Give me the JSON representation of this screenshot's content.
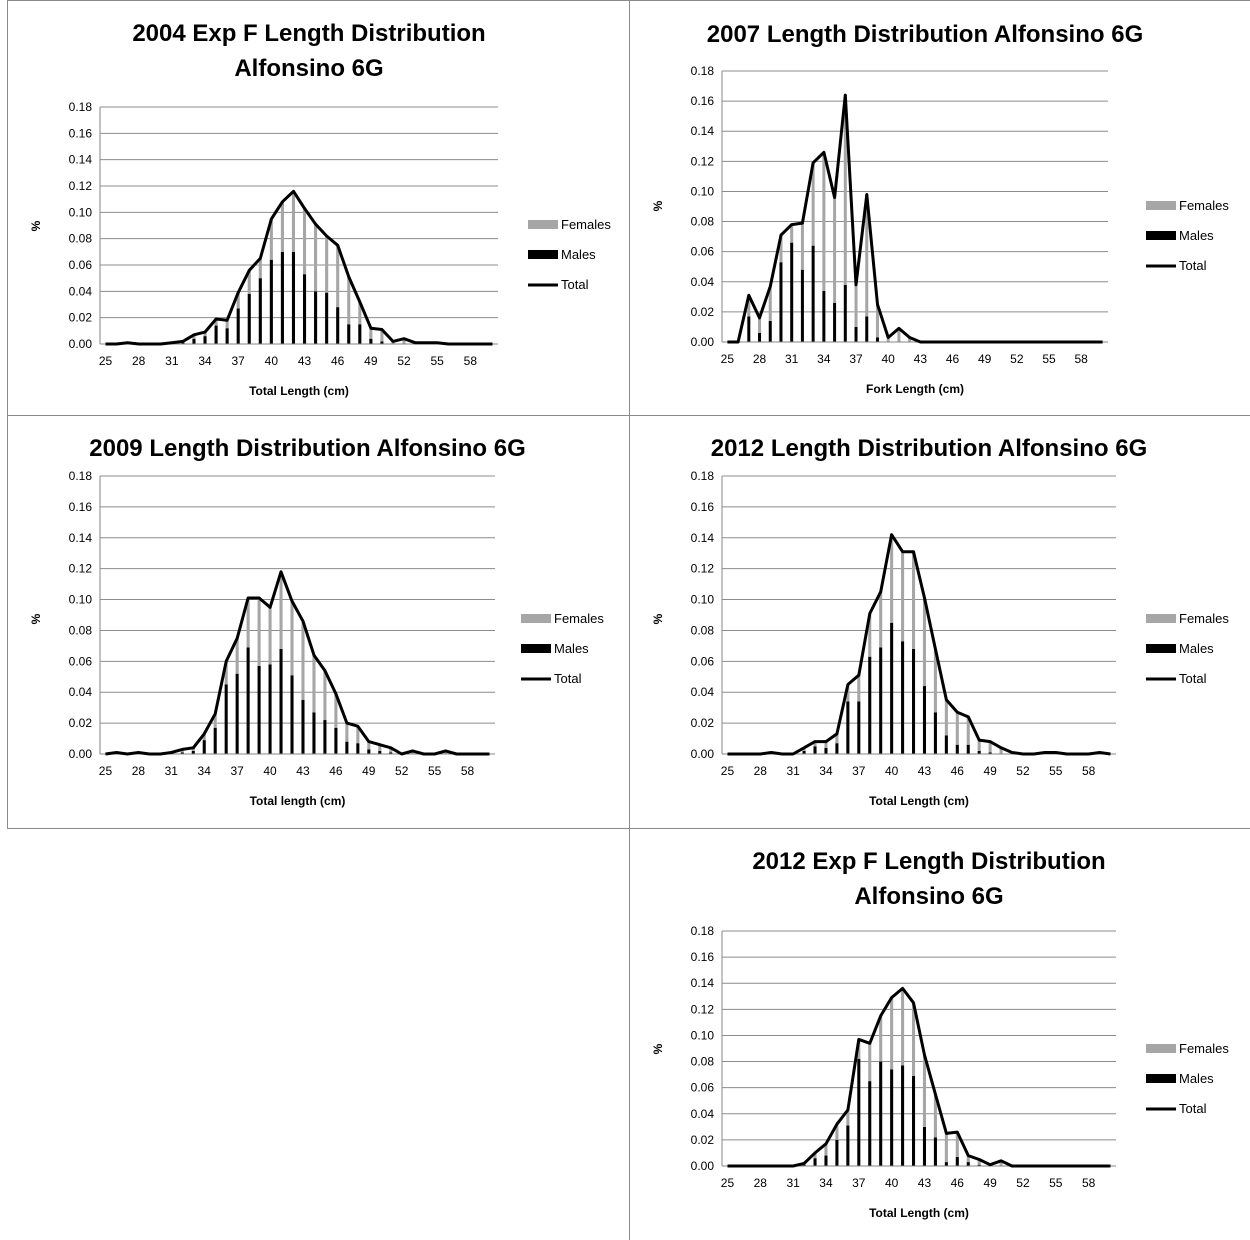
{
  "legend": {
    "females": "Females",
    "males": "Males",
    "total": "Total"
  },
  "colors": {
    "females": "#a6a6a6",
    "males": "#000000",
    "total": "#000000",
    "grid": "#8c8c8c"
  },
  "chart_data": [
    {
      "type": "bar",
      "title_lines": [
        "2004  Exp F Length Distribution",
        "Alfonsino  6G"
      ],
      "xlabel": "Total Length (cm)",
      "ylabel": "%",
      "ylim": [
        0,
        0.18
      ],
      "yticks": [
        "0.00",
        "0.02",
        "0.04",
        "0.06",
        "0.08",
        "0.10",
        "0.12",
        "0.14",
        "0.16",
        "0.18"
      ],
      "xtick_labels": [
        "25",
        "28",
        "31",
        "34",
        "37",
        "40",
        "43",
        "46",
        "49",
        "52",
        "55",
        "58"
      ],
      "x": [
        25,
        26,
        27,
        28,
        29,
        30,
        31,
        32,
        33,
        34,
        35,
        36,
        37,
        38,
        39,
        40,
        41,
        42,
        43,
        44,
        45,
        46,
        47,
        48,
        49,
        50,
        51,
        52,
        53,
        54,
        55,
        56,
        57,
        58,
        59,
        60
      ],
      "total": [
        0,
        0,
        0.001,
        0,
        0,
        0,
        0.001,
        0.002,
        0.007,
        0.009,
        0.019,
        0.018,
        0.039,
        0.056,
        0.065,
        0.095,
        0.108,
        0.116,
        0.103,
        0.091,
        0.082,
        0.075,
        0.051,
        0.032,
        0.012,
        0.011,
        0.002,
        0.004,
        0.001,
        0.001,
        0.001,
        0,
        0,
        0,
        0,
        0
      ],
      "males": [
        0,
        0,
        0,
        0,
        0,
        0,
        0,
        0.001,
        0.004,
        0.006,
        0.014,
        0.012,
        0.027,
        0.038,
        0.05,
        0.064,
        0.07,
        0.07,
        0.053,
        0.04,
        0.039,
        0.028,
        0.015,
        0.015,
        0.004,
        0.002,
        0,
        0,
        0,
        0,
        0,
        0,
        0,
        0,
        0,
        0
      ],
      "females": [
        0,
        0,
        0.001,
        0,
        0,
        0,
        0.001,
        0.001,
        0.003,
        0.003,
        0.005,
        0.006,
        0.012,
        0.018,
        0.015,
        0.031,
        0.038,
        0.046,
        0.05,
        0.051,
        0.043,
        0.047,
        0.036,
        0.017,
        0.008,
        0.009,
        0.002,
        0.004,
        0.001,
        0.001,
        0.001,
        0,
        0,
        0,
        0,
        0
      ]
    },
    {
      "type": "bar",
      "title_lines": [
        "2007  Length Distribution Alfonsino  6G"
      ],
      "xlabel": "Fork Length (cm)",
      "ylabel": "%",
      "ylim": [
        0,
        0.18
      ],
      "yticks": [
        "0.00",
        "0.02",
        "0.04",
        "0.06",
        "0.08",
        "0.10",
        "0.12",
        "0.14",
        "0.16",
        "0.18"
      ],
      "xtick_labels": [
        "25",
        "28",
        "31",
        "34",
        "37",
        "40",
        "43",
        "46",
        "49",
        "52",
        "55",
        "58"
      ],
      "x": [
        25,
        26,
        27,
        28,
        29,
        30,
        31,
        32,
        33,
        34,
        35,
        36,
        37,
        38,
        39,
        40,
        41,
        42,
        43,
        44,
        45,
        46,
        47,
        48,
        49,
        50,
        51,
        52,
        53,
        54,
        55,
        56,
        57,
        58,
        59,
        60
      ],
      "total": [
        0,
        0,
        0.031,
        0.016,
        0.037,
        0.071,
        0.078,
        0.079,
        0.119,
        0.126,
        0.096,
        0.164,
        0.038,
        0.098,
        0.025,
        0.003,
        0.009,
        0.003,
        0,
        0,
        0,
        0,
        0,
        0,
        0,
        0,
        0,
        0,
        0,
        0,
        0,
        0,
        0,
        0,
        0,
        0
      ],
      "males": [
        0,
        0,
        0.017,
        0.006,
        0.014,
        0.053,
        0.066,
        0.048,
        0.064,
        0.034,
        0.026,
        0.038,
        0.01,
        0.017,
        0.003,
        0,
        0,
        0,
        0,
        0,
        0,
        0,
        0,
        0,
        0,
        0,
        0,
        0,
        0,
        0,
        0,
        0,
        0,
        0,
        0,
        0
      ],
      "females": [
        0,
        0,
        0.014,
        0.01,
        0.023,
        0.018,
        0.012,
        0.031,
        0.055,
        0.092,
        0.07,
        0.126,
        0.028,
        0.081,
        0.022,
        0.003,
        0.009,
        0.003,
        0,
        0,
        0,
        0,
        0,
        0,
        0,
        0,
        0,
        0,
        0,
        0,
        0,
        0,
        0,
        0,
        0,
        0
      ]
    },
    {
      "type": "bar",
      "title_lines": [
        "2009  Length Distribution Alfonsino  6G"
      ],
      "xlabel": "Total length (cm)",
      "ylabel": "%",
      "ylim": [
        0,
        0.18
      ],
      "yticks": [
        "0.00",
        "0.02",
        "0.04",
        "0.06",
        "0.08",
        "0.10",
        "0.12",
        "0.14",
        "0.16",
        "0.18"
      ],
      "xtick_labels": [
        "25",
        "28",
        "31",
        "34",
        "37",
        "40",
        "43",
        "46",
        "49",
        "52",
        "55",
        "58"
      ],
      "x": [
        25,
        26,
        27,
        28,
        29,
        30,
        31,
        32,
        33,
        34,
        35,
        36,
        37,
        38,
        39,
        40,
        41,
        42,
        43,
        44,
        45,
        46,
        47,
        48,
        49,
        50,
        51,
        52,
        53,
        54,
        55,
        56,
        57,
        58,
        59,
        60
      ],
      "total": [
        0,
        0.001,
        0,
        0.001,
        0,
        0,
        0.001,
        0.003,
        0.004,
        0.013,
        0.026,
        0.06,
        0.075,
        0.101,
        0.101,
        0.095,
        0.118,
        0.099,
        0.086,
        0.064,
        0.054,
        0.039,
        0.02,
        0.018,
        0.008,
        0.006,
        0.004,
        0,
        0.002,
        0,
        0,
        0.002,
        0,
        0,
        0,
        0
      ],
      "males": [
        0,
        0,
        0,
        0,
        0,
        0,
        0,
        0.001,
        0.002,
        0.009,
        0.017,
        0.045,
        0.052,
        0.069,
        0.057,
        0.058,
        0.068,
        0.051,
        0.035,
        0.027,
        0.022,
        0.017,
        0.008,
        0.007,
        0.003,
        0.002,
        0.001,
        0,
        0,
        0,
        0,
        0,
        0,
        0,
        0,
        0
      ],
      "females": [
        0,
        0.001,
        0,
        0.001,
        0,
        0,
        0.001,
        0.002,
        0.002,
        0.004,
        0.009,
        0.015,
        0.023,
        0.032,
        0.044,
        0.037,
        0.05,
        0.048,
        0.051,
        0.037,
        0.032,
        0.022,
        0.012,
        0.011,
        0.005,
        0.004,
        0.003,
        0,
        0.002,
        0,
        0,
        0.002,
        0,
        0,
        0,
        0
      ]
    },
    {
      "type": "bar",
      "title_lines": [
        "2012  Length Distribution Alfonsino  6G"
      ],
      "xlabel": "Total Length (cm)",
      "ylabel": "%",
      "ylim": [
        0,
        0.18
      ],
      "yticks": [
        "0.00",
        "0.02",
        "0.04",
        "0.06",
        "0.08",
        "0.10",
        "0.12",
        "0.14",
        "0.16",
        "0.18"
      ],
      "xtick_labels": [
        "25",
        "28",
        "31",
        "34",
        "37",
        "40",
        "43",
        "46",
        "49",
        "52",
        "55",
        "58"
      ],
      "x": [
        25,
        26,
        27,
        28,
        29,
        30,
        31,
        32,
        33,
        34,
        35,
        36,
        37,
        38,
        39,
        40,
        41,
        42,
        43,
        44,
        45,
        46,
        47,
        48,
        49,
        50,
        51,
        52,
        53,
        54,
        55,
        56,
        57,
        58,
        59,
        60
      ],
      "total": [
        0,
        0,
        0,
        0,
        0.001,
        0,
        0,
        0.004,
        0.008,
        0.008,
        0.013,
        0.045,
        0.051,
        0.091,
        0.105,
        0.142,
        0.131,
        0.131,
        0.101,
        0.068,
        0.035,
        0.027,
        0.024,
        0.009,
        0.008,
        0.004,
        0.001,
        0,
        0,
        0.001,
        0.001,
        0,
        0,
        0,
        0.001,
        0
      ],
      "males": [
        0,
        0,
        0,
        0,
        0,
        0,
        0,
        0.002,
        0.005,
        0.004,
        0.007,
        0.034,
        0.034,
        0.063,
        0.069,
        0.085,
        0.073,
        0.068,
        0.044,
        0.027,
        0.012,
        0.006,
        0.006,
        0.002,
        0.001,
        0,
        0,
        0,
        0,
        0,
        0,
        0,
        0,
        0,
        0,
        0
      ],
      "females": [
        0,
        0,
        0,
        0,
        0.001,
        0,
        0,
        0.002,
        0.003,
        0.004,
        0.006,
        0.011,
        0.017,
        0.028,
        0.036,
        0.057,
        0.058,
        0.063,
        0.057,
        0.041,
        0.023,
        0.021,
        0.018,
        0.007,
        0.007,
        0.004,
        0.001,
        0,
        0,
        0.001,
        0.001,
        0,
        0,
        0,
        0.001,
        0
      ]
    },
    {
      "type": "bar",
      "title_lines": [
        "2012 Exp F Length Distribution",
        "Alfonsino  6G"
      ],
      "xlabel": "Total Length (cm)",
      "ylabel": "%",
      "ylim": [
        0,
        0.18
      ],
      "yticks": [
        "0.00",
        "0.02",
        "0.04",
        "0.06",
        "0.08",
        "0.10",
        "0.12",
        "0.14",
        "0.16",
        "0.18"
      ],
      "xtick_labels": [
        "25",
        "28",
        "31",
        "34",
        "37",
        "40",
        "43",
        "46",
        "49",
        "52",
        "55",
        "58"
      ],
      "x": [
        25,
        26,
        27,
        28,
        29,
        30,
        31,
        32,
        33,
        34,
        35,
        36,
        37,
        38,
        39,
        40,
        41,
        42,
        43,
        44,
        45,
        46,
        47,
        48,
        49,
        50,
        51,
        52,
        53,
        54,
        55,
        56,
        57,
        58,
        59,
        60
      ],
      "total": [
        0,
        0,
        0,
        0,
        0,
        0,
        0,
        0.002,
        0.01,
        0.017,
        0.032,
        0.043,
        0.097,
        0.094,
        0.115,
        0.129,
        0.136,
        0.125,
        0.085,
        0.055,
        0.025,
        0.026,
        0.008,
        0.005,
        0.001,
        0.004,
        0,
        0,
        0,
        0,
        0,
        0,
        0,
        0,
        0,
        0
      ],
      "males": [
        0,
        0,
        0,
        0,
        0,
        0,
        0,
        0.001,
        0.006,
        0.008,
        0.02,
        0.031,
        0.082,
        0.065,
        0.08,
        0.074,
        0.077,
        0.069,
        0.03,
        0.022,
        0.003,
        0.007,
        0.003,
        0.001,
        0,
        0,
        0,
        0,
        0,
        0,
        0,
        0,
        0,
        0,
        0,
        0
      ],
      "females": [
        0,
        0,
        0,
        0,
        0,
        0,
        0,
        0.001,
        0.004,
        0.009,
        0.012,
        0.012,
        0.015,
        0.029,
        0.035,
        0.055,
        0.059,
        0.056,
        0.055,
        0.033,
        0.022,
        0.019,
        0.005,
        0.004,
        0.001,
        0.004,
        0,
        0,
        0,
        0,
        0,
        0,
        0,
        0,
        0,
        0
      ]
    }
  ]
}
